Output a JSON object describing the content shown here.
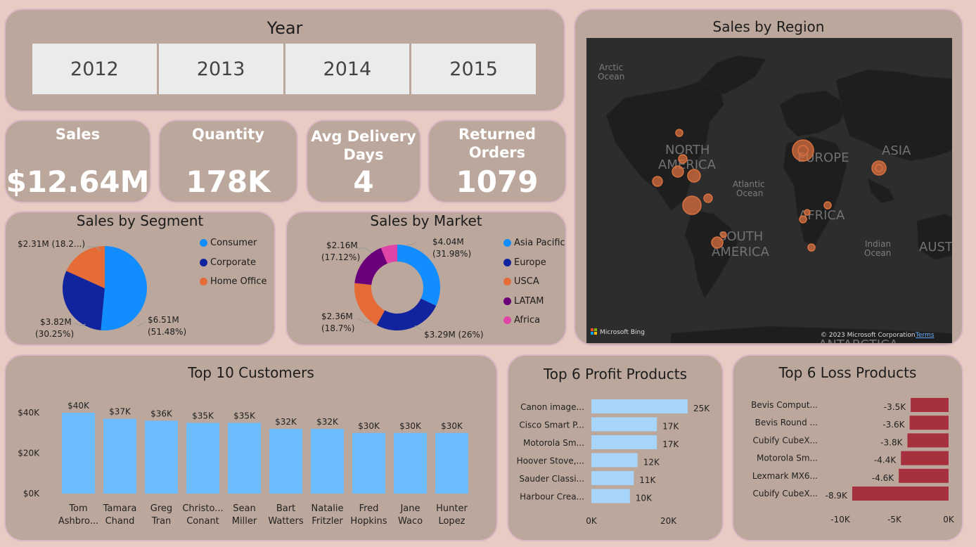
{
  "year_slicer": {
    "title": "Year",
    "years": [
      "2012",
      "2013",
      "2014",
      "2015"
    ]
  },
  "kpis": {
    "sales": {
      "label": "Sales",
      "value": "$12.64M"
    },
    "quantity": {
      "label": "Quantity",
      "value": "178K"
    },
    "delivery": {
      "label_line1": "Avg Delivery",
      "label_line2": "Days",
      "value": "4"
    },
    "returned": {
      "label_line1": "Returned",
      "label_line2": "Orders",
      "value": "1079"
    }
  },
  "colors": {
    "consumer": "#118dff",
    "corporate": "#12239e",
    "home_office": "#e66c37",
    "asia_pacific": "#118dff",
    "europe": "#12239e",
    "usca": "#e66c37",
    "latam": "#6b007b",
    "africa": "#e044a7",
    "customer_bar": "#6cbbfd",
    "profit_bar": "#a7d4f9",
    "loss_bar": "#a6303d",
    "bubble": "#d9703f"
  },
  "segment": {
    "title": "Sales by Segment",
    "legend": [
      "Consumer",
      "Corporate",
      "Home Office"
    ],
    "chart_data": {
      "type": "pie",
      "categories": [
        "Consumer",
        "Corporate",
        "Home Office"
      ],
      "values": [
        6.51,
        3.82,
        2.31
      ],
      "percents": [
        51.48,
        30.25,
        18.27
      ],
      "labels": {
        "consumer_1": "$6.51M",
        "consumer_2": "(51.48%)",
        "corporate_1": "$3.82M",
        "corporate_2": "(30.25%)",
        "home_office_1": "$2.31M (18.2...)"
      }
    }
  },
  "market": {
    "title": "Sales by Market",
    "legend": [
      "Asia Pacific",
      "Europe",
      "USCA",
      "LATAM",
      "Africa"
    ],
    "chart_data": {
      "type": "pie",
      "donut": true,
      "categories": [
        "Asia Pacific",
        "Europe",
        "USCA",
        "LATAM",
        "Africa"
      ],
      "values": [
        4.04,
        3.29,
        2.36,
        2.16,
        0.79
      ],
      "percents": [
        31.98,
        26.0,
        18.7,
        17.12,
        6.2
      ],
      "labels": {
        "asia_1": "$4.04M",
        "asia_2": "(31.98%)",
        "europe": "$3.29M (26%)",
        "usca_1": "$2.36M",
        "usca_2": "(18.7%)",
        "latam_1": "$2.16M",
        "latam_2": "(17.12%)"
      }
    }
  },
  "region": {
    "title": "Sales by Region",
    "labels": {
      "arctic_1": "Arctic",
      "arctic_2": "Ocean",
      "north_1": "NORTH",
      "north_2": "AMERICA",
      "europe": "EUROPE",
      "asia": "ASIA",
      "atlantic_1": "Atlantic",
      "atlantic_2": "Ocean",
      "africa": "AFRICA",
      "south_1": "SOUTH",
      "south_2": "AMERICA",
      "indian_1": "Indian",
      "indian_2": "Ocean",
      "aust": "AUST",
      "antarctica": "ANTARCTICA"
    },
    "bing": "Microsoft Bing",
    "copyright": "© 2023 Microsoft Corporation",
    "terms": "Terms"
  },
  "customers": {
    "title": "Top 10 Customers",
    "chart_data": {
      "type": "bar",
      "categories": [
        "Tom Ashbrook",
        "Tamara Chand",
        "Greg Tran",
        "Christopher Conant",
        "Sean Miller",
        "Bart Watters",
        "Natalie Fritzler",
        "Fred Hopkins",
        "Jane Waco",
        "Hunter Lopez"
      ],
      "values": [
        40,
        37,
        36,
        35,
        35,
        32,
        32,
        30,
        30,
        30
      ],
      "value_labels": [
        "$40K",
        "$37K",
        "$36K",
        "$35K",
        "$35K",
        "$32K",
        "$32K",
        "$30K",
        "$30K",
        "$30K"
      ],
      "name_line1": [
        "Tom",
        "Tamara",
        "Greg",
        "Christo...",
        "Sean",
        "Bart",
        "Natalie",
        "Fred",
        "Jane",
        "Hunter"
      ],
      "name_line2": [
        "Ashbro...",
        "Chand",
        "Tran",
        "Conant",
        "Miller",
        "Watters",
        "Fritzler",
        "Hopkins",
        "Waco",
        "Lopez"
      ],
      "ylim": [
        0,
        40
      ],
      "yticks": [
        0,
        20,
        40
      ],
      "ytick_labels": [
        "$0K",
        "$20K",
        "$40K"
      ]
    }
  },
  "profit": {
    "title": "Top 6 Profit Products",
    "chart_data": {
      "type": "bar",
      "orientation": "horizontal",
      "categories": [
        "Canon image...",
        "Cisco Smart P...",
        "Motorola Sm...",
        "Hoover Stove,...",
        "Sauder Classi...",
        "Harbour Crea..."
      ],
      "values": [
        25,
        17,
        17,
        12,
        11,
        10
      ],
      "value_labels": [
        "25K",
        "17K",
        "17K",
        "12K",
        "11K",
        "10K"
      ],
      "xlim": [
        0,
        25
      ],
      "xticks": [
        0,
        20
      ],
      "xtick_labels": [
        "0K",
        "20K"
      ]
    }
  },
  "loss": {
    "title": "Top 6 Loss Products",
    "chart_data": {
      "type": "bar",
      "orientation": "horizontal",
      "categories": [
        "Bevis Comput...",
        "Bevis Round ...",
        "Cubify CubeX...",
        "Motorola Sm...",
        "Lexmark MX6...",
        "Cubify CubeX..."
      ],
      "values": [
        -3.5,
        -3.6,
        -3.8,
        -4.4,
        -4.6,
        -8.9
      ],
      "value_labels": [
        "-3.5K",
        "-3.6K",
        "-3.8K",
        "-4.4K",
        "-4.6K",
        "-8.9K"
      ],
      "xlim": [
        -10,
        0
      ],
      "xticks": [
        -10,
        -5,
        0
      ],
      "xtick_labels": [
        "-10K",
        "-5K",
        "0K"
      ]
    }
  }
}
